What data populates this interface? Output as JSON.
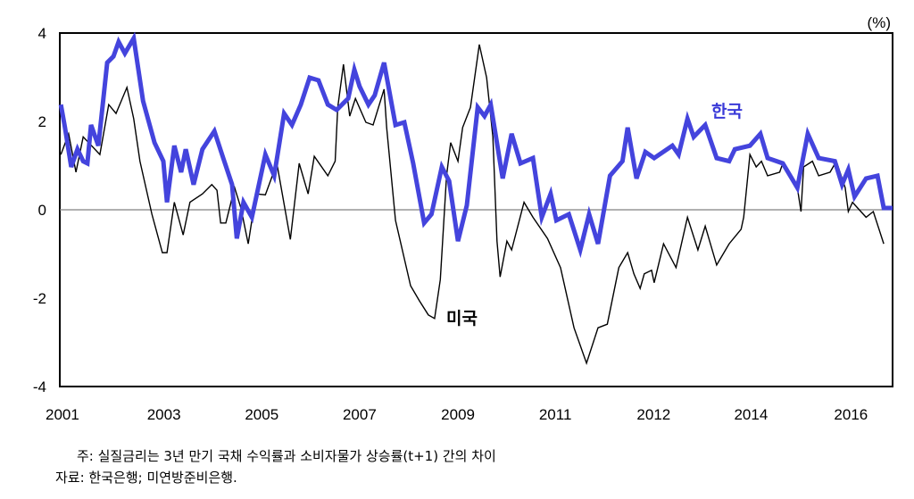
{
  "chart_data": {
    "type": "line",
    "unit_label": "(%)",
    "xlabel": "",
    "ylabel": "",
    "ylim": [
      -4,
      4
    ],
    "xlim": [
      2001.0,
      2017.0
    ],
    "y_ticks": [
      4,
      2,
      0,
      -2,
      -4
    ],
    "x_ticks": [
      {
        "value": 2001.05,
        "label": "2001"
      },
      {
        "value": 2003.0,
        "label": "2003"
      },
      {
        "value": 2004.88,
        "label": "2005"
      },
      {
        "value": 2006.76,
        "label": "2007"
      },
      {
        "value": 2008.65,
        "label": "2009"
      },
      {
        "value": 2010.52,
        "label": "2011"
      },
      {
        "value": 2012.41,
        "label": "2012"
      },
      {
        "value": 2014.28,
        "label": "2014"
      },
      {
        "value": 2016.2,
        "label": "2016"
      }
    ],
    "grid": false,
    "zero_line": true,
    "series": [
      {
        "name": "한국",
        "color": "#4444dd",
        "x": [
          2001.02,
          2001.1,
          2001.22,
          2001.34,
          2001.45,
          2001.53,
          2001.6,
          2001.74,
          2001.91,
          2002.03,
          2002.13,
          2002.25,
          2002.42,
          2002.6,
          2002.82,
          2002.99,
          2003.06,
          2003.2,
          2003.33,
          2003.42,
          2003.57,
          2003.74,
          2003.97,
          2004.14,
          2004.31,
          2004.4,
          2004.53,
          2004.69,
          2004.95,
          2005.12,
          2005.31,
          2005.46,
          2005.63,
          2005.8,
          2005.97,
          2006.15,
          2006.32,
          2006.54,
          2006.66,
          2006.76,
          2006.93,
          2007.05,
          2007.23,
          2007.45,
          2007.62,
          2007.79,
          2008.0,
          2008.14,
          2008.34,
          2008.48,
          2008.65,
          2008.82,
          2009.03,
          2009.16,
          2009.28,
          2009.51,
          2009.68,
          2009.85,
          2010.09,
          2010.26,
          2010.43,
          2010.54,
          2010.78,
          2011.0,
          2011.17,
          2011.34,
          2011.57,
          2011.81,
          2011.91,
          2012.08,
          2012.25,
          2012.42,
          2012.77,
          2012.89,
          2013.06,
          2013.18,
          2013.4,
          2013.62,
          2013.86,
          2013.97,
          2014.26,
          2014.46,
          2014.6,
          2014.89,
          2015.17,
          2015.37,
          2015.58,
          2015.89,
          2016.03,
          2016.15,
          2016.27,
          2016.49,
          2016.71,
          2016.83,
          2017.0
        ],
        "values": [
          2.38,
          1.86,
          0.97,
          1.37,
          1.1,
          1.05,
          1.92,
          1.45,
          3.33,
          3.47,
          3.8,
          3.54,
          3.88,
          2.46,
          1.52,
          1.1,
          0.17,
          1.45,
          0.85,
          1.37,
          0.57,
          1.37,
          1.78,
          1.17,
          0.57,
          -0.65,
          0.17,
          -0.17,
          1.25,
          0.77,
          2.18,
          1.92,
          2.38,
          2.99,
          2.93,
          2.38,
          2.26,
          2.52,
          3.17,
          2.79,
          2.38,
          2.59,
          3.33,
          1.92,
          1.98,
          1.05,
          -0.3,
          -0.1,
          0.97,
          0.65,
          -0.71,
          0.1,
          2.32,
          2.12,
          2.38,
          0.71,
          1.72,
          1.05,
          1.17,
          -0.17,
          0.36,
          -0.24,
          -0.1,
          -0.91,
          -0.1,
          -0.77,
          0.77,
          1.1,
          1.86,
          0.71,
          1.31,
          1.17,
          1.45,
          1.25,
          2.06,
          1.65,
          1.92,
          1.17,
          1.1,
          1.37,
          1.45,
          1.72,
          1.17,
          1.05,
          0.5,
          1.72,
          1.17,
          1.1,
          0.57,
          0.91,
          0.3,
          0.71,
          0.77,
          0.04,
          0.04
        ]
      },
      {
        "name": "미국",
        "color": "#000000",
        "x": [
          2001.02,
          2001.17,
          2001.31,
          2001.45,
          2001.77,
          2001.94,
          2002.08,
          2002.29,
          2002.42,
          2002.54,
          2002.77,
          2002.97,
          2003.06,
          2003.2,
          2003.37,
          2003.5,
          2003.74,
          2003.92,
          2004.02,
          2004.09,
          2004.19,
          2004.36,
          2004.48,
          2004.62,
          2004.77,
          2004.95,
          2005.17,
          2005.43,
          2005.6,
          2005.77,
          2005.89,
          2006.15,
          2006.29,
          2006.34,
          2006.45,
          2006.57,
          2006.68,
          2006.88,
          2007.02,
          2007.23,
          2007.28,
          2007.45,
          2007.74,
          2007.91,
          2008.08,
          2008.2,
          2008.31,
          2008.43,
          2008.51,
          2008.65,
          2008.74,
          2008.89,
          2009.06,
          2009.2,
          2009.32,
          2009.4,
          2009.46,
          2009.59,
          2009.68,
          2009.92,
          2010.09,
          2010.37,
          2010.62,
          2010.88,
          2011.12,
          2011.34,
          2011.52,
          2011.74,
          2011.91,
          2012.03,
          2012.15,
          2012.23,
          2012.37,
          2012.42,
          2012.6,
          2012.84,
          2013.06,
          2013.26,
          2013.4,
          2013.62,
          2013.86,
          2014.09,
          2014.14,
          2014.26,
          2014.38,
          2014.48,
          2014.6,
          2014.83,
          2014.89,
          2015.17,
          2015.24,
          2015.29,
          2015.46,
          2015.58,
          2015.8,
          2015.92,
          2016.09,
          2016.15,
          2016.23,
          2016.49,
          2016.63,
          2016.83
        ],
        "values": [
          1.25,
          1.72,
          0.85,
          1.65,
          1.25,
          2.38,
          2.18,
          2.77,
          2.06,
          1.1,
          -0.1,
          -0.97,
          -0.97,
          0.17,
          -0.57,
          0.17,
          0.36,
          0.57,
          0.44,
          -0.3,
          -0.3,
          0.5,
          0.04,
          -0.77,
          0.36,
          0.34,
          1.05,
          -0.67,
          1.05,
          0.36,
          1.21,
          0.77,
          1.1,
          2.32,
          3.29,
          2.12,
          2.52,
          1.98,
          1.92,
          2.73,
          1.86,
          -0.24,
          -1.72,
          -2.06,
          -2.38,
          -2.46,
          -1.58,
          0.77,
          1.52,
          1.1,
          1.86,
          2.32,
          3.74,
          2.99,
          1.65,
          -0.71,
          -1.52,
          -0.71,
          -0.91,
          0.17,
          -0.17,
          -0.65,
          -1.31,
          -2.67,
          -3.47,
          -2.67,
          -2.59,
          -1.31,
          -0.97,
          -1.45,
          -1.78,
          -1.45,
          -1.37,
          -1.65,
          -0.77,
          -1.31,
          -0.17,
          -0.91,
          -0.37,
          -1.25,
          -0.77,
          -0.44,
          -0.17,
          1.25,
          0.97,
          1.1,
          0.77,
          0.85,
          1.05,
          0.5,
          -0.04,
          0.97,
          1.1,
          0.77,
          0.85,
          1.1,
          0.5,
          -0.04,
          0.17,
          -0.17,
          -0.04,
          -0.77
        ]
      }
    ]
  },
  "notes": {
    "note": "주: 실질금리는 3년 만기 국채 수익률과 소비자물가 상승률(t+1) 간의 차이",
    "source": "자료: 한국은행; 미연방준비은행."
  }
}
